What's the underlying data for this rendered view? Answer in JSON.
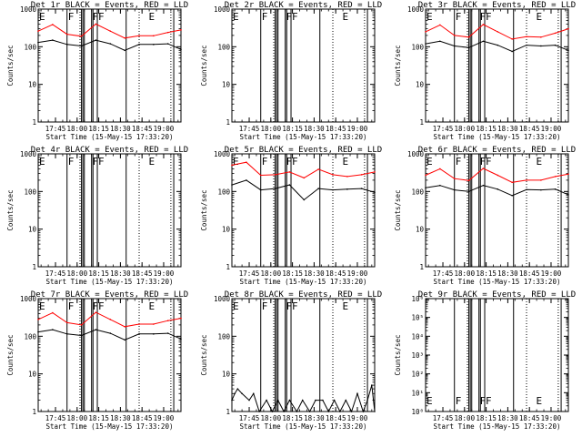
{
  "figure": {
    "time_axis": {
      "range": [
        "17:33",
        "19:12"
      ],
      "ticks": [
        "17:45",
        "18:00",
        "18:15",
        "18:30",
        "18:45",
        "19:00"
      ],
      "label": "Start Time (15-May-15 17:33:20)"
    },
    "ylabel": "Counts/sec",
    "colors": {
      "events": "#000000",
      "lld": "#ff0000"
    },
    "flags": [
      {
        "label": "E",
        "time": "17:33"
      },
      {
        "label": "F",
        "time": "17:53"
      },
      {
        "label": "F",
        "time": "18:10"
      },
      {
        "label": "F",
        "time": "18:14"
      },
      {
        "label": "E",
        "time": "18:49"
      }
    ],
    "solid_lines": [
      "17:53",
      "18:03",
      "18:04",
      "18:05",
      "18:10",
      "18:11",
      "18:14",
      "18:34",
      "19:07"
    ],
    "dotted_lines": [
      "18:02",
      "18:43",
      "19:05"
    ]
  },
  "chart_data": [
    {
      "type": "line",
      "title": "Det 1r BLACK = Events, RED = LLD",
      "ylog": true,
      "ylim": [
        1,
        1000
      ],
      "yticks": [
        "1",
        "10",
        "100",
        "1000"
      ],
      "x": [
        "17:33",
        "17:43",
        "17:53",
        "18:03",
        "18:13",
        "18:23",
        "18:33",
        "18:43",
        "18:53",
        "19:03",
        "19:12"
      ],
      "series": [
        {
          "values": [
            130,
            150,
            115,
            105,
            150,
            120,
            80,
            115,
            115,
            120,
            85
          ]
        },
        {
          "values": [
            260,
            390,
            215,
            190,
            400,
            260,
            170,
            195,
            195,
            240,
            280
          ]
        }
      ]
    },
    {
      "type": "line",
      "title": "Det 2r BLACK = Events, RED = LLD",
      "ylog": true,
      "ylim": [
        1,
        1000
      ],
      "yticks": [
        "1",
        "10",
        "100",
        "1000"
      ],
      "series": []
    },
    {
      "type": "line",
      "title": "Det 3r BLACK = Events, RED = LLD",
      "ylog": true,
      "ylim": [
        1,
        1000
      ],
      "yticks": [
        "1",
        "10",
        "100",
        "1000"
      ],
      "x": [
        "17:33",
        "17:43",
        "17:53",
        "18:03",
        "18:13",
        "18:23",
        "18:33",
        "18:43",
        "18:53",
        "19:03",
        "19:12"
      ],
      "series": [
        {
          "values": [
            120,
            140,
            105,
            95,
            140,
            110,
            75,
            110,
            105,
            110,
            80
          ]
        },
        {
          "values": [
            250,
            380,
            200,
            180,
            390,
            250,
            160,
            185,
            180,
            230,
            300
          ]
        }
      ]
    },
    {
      "type": "line",
      "title": "Det 4r BLACK = Events, RED = LLD",
      "ylog": true,
      "ylim": [
        1,
        1000
      ],
      "yticks": [
        "1",
        "10",
        "100",
        "1000"
      ],
      "series": []
    },
    {
      "type": "line",
      "title": "Det 5r BLACK = Events, RED = LLD",
      "ylog": true,
      "ylim": [
        1,
        1000
      ],
      "yticks": [
        "1",
        "10",
        "100",
        "1000"
      ],
      "x": [
        "17:33",
        "17:43",
        "17:53",
        "18:03",
        "18:13",
        "18:23",
        "18:33",
        "18:43",
        "18:53",
        "19:03",
        "19:12"
      ],
      "series": [
        {
          "values": [
            150,
            200,
            110,
            120,
            150,
            60,
            120,
            110,
            115,
            120,
            95
          ]
        },
        {
          "values": [
            500,
            600,
            270,
            280,
            330,
            230,
            390,
            280,
            250,
            280,
            330
          ]
        }
      ]
    },
    {
      "type": "line",
      "title": "Det 6r BLACK = Events, RED = LLD",
      "ylog": true,
      "ylim": [
        1,
        1000
      ],
      "yticks": [
        "1",
        "10",
        "100",
        "1000"
      ],
      "x": [
        "17:33",
        "17:43",
        "17:53",
        "18:03",
        "18:13",
        "18:23",
        "18:33",
        "18:43",
        "18:53",
        "19:03",
        "19:12"
      ],
      "series": [
        {
          "values": [
            125,
            145,
            110,
            100,
            145,
            115,
            78,
            112,
            110,
            115,
            82
          ]
        },
        {
          "values": [
            270,
            400,
            220,
            195,
            410,
            270,
            175,
            200,
            200,
            250,
            290
          ]
        }
      ]
    },
    {
      "type": "line",
      "title": "Det 7r BLACK = Events, RED = LLD",
      "ylog": true,
      "ylim": [
        1,
        1000
      ],
      "yticks": [
        "1",
        "10",
        "100",
        "1000"
      ],
      "x": [
        "17:33",
        "17:43",
        "17:53",
        "18:03",
        "18:13",
        "18:23",
        "18:33",
        "18:43",
        "18:53",
        "19:03",
        "19:12"
      ],
      "series": [
        {
          "values": [
            130,
            150,
            115,
            105,
            150,
            120,
            80,
            115,
            115,
            120,
            85
          ]
        },
        {
          "values": [
            280,
            420,
            230,
            200,
            430,
            280,
            180,
            210,
            210,
            260,
            300
          ]
        }
      ]
    },
    {
      "type": "line",
      "title": "Det 8r BLACK = Events, RED = LLD",
      "ylog": true,
      "ylim": [
        1,
        1000
      ],
      "yticks": [
        "1",
        "10",
        "100",
        "1000"
      ],
      "x": [
        "17:33",
        "17:35",
        "17:37",
        "17:40",
        "17:45",
        "17:48",
        "17:52",
        "17:57",
        "18:01",
        "18:05",
        "18:09",
        "18:13",
        "18:18",
        "18:22",
        "18:27",
        "18:31",
        "18:36",
        "18:40",
        "18:44",
        "18:48",
        "18:52",
        "18:56",
        "19:00",
        "19:04",
        "19:07",
        "19:10",
        "19:12"
      ],
      "series": [
        {
          "values": [
            2,
            3,
            4,
            3,
            2,
            3,
            1,
            2,
            1,
            2,
            1,
            2,
            1,
            2,
            1,
            2,
            2,
            1,
            2,
            1,
            2,
            1,
            3,
            1,
            2,
            5,
            1
          ]
        }
      ]
    },
    {
      "type": "line",
      "title": "Det 9r BLACK = Events, RED = LLD",
      "ylog": true,
      "ylim": [
        1,
        1000000
      ],
      "yticks": [
        "10⁰",
        "10¹",
        "10²",
        "10³",
        "10⁴",
        "10⁵",
        "10⁶"
      ],
      "series": []
    }
  ]
}
